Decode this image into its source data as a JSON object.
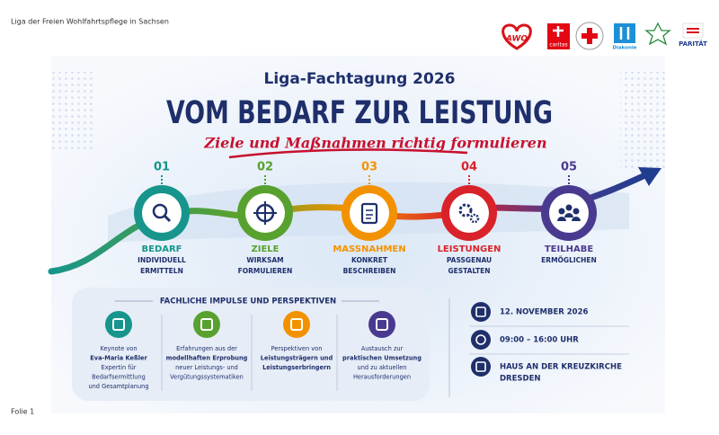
{
  "header": {
    "organization": "Liga der Freien Wohlfahrtspflege in Sachsen",
    "logos": [
      "AWO",
      "caritas",
      "Diakonie",
      "PARITÄT"
    ]
  },
  "slide": {
    "kicker": "Liga-Fachtagung 2026",
    "title": "VOM BEDARF ZUR LEISTUNG",
    "subtitle": "Ziele und Maßnahmen richtig formulieren",
    "steps": [
      {
        "number": "01",
        "title": "BEDARF",
        "lines": [
          "INDIVIDUELL",
          "ERMITTELN"
        ],
        "color": "#17958c"
      },
      {
        "number": "02",
        "title": "ZIELE",
        "lines": [
          "WIRKSAM",
          "FORMULIEREN"
        ],
        "color": "#58a12f"
      },
      {
        "number": "03",
        "title": "MASSNAHMEN",
        "lines": [
          "KONKRET",
          "BESCHREIBEN"
        ],
        "color": "#f39200"
      },
      {
        "number": "04",
        "title": "LEISTUNGEN",
        "lines": [
          "PASSGENAU",
          "GESTALTEN"
        ],
        "color": "#d9222a"
      },
      {
        "number": "05",
        "title": "TEILHABE",
        "lines": [
          "ERMÖGLICHEN"
        ],
        "color": "#4a3a8f"
      }
    ],
    "impulses": {
      "heading": "FACHLICHE IMPULSE UND PERSPEKTIVEN",
      "items": [
        {
          "color": "#17958c",
          "lines": [
            {
              "text": "Keynote von",
              "bold": false
            },
            {
              "text": "Eva-Maria Keßler",
              "bold": true
            },
            {
              "text": "Expertin für",
              "bold": false
            },
            {
              "text": "Bedarfsermittlung",
              "bold": false
            },
            {
              "text": "und Gesamtplanung",
              "bold": false
            }
          ]
        },
        {
          "color": "#58a12f",
          "lines": [
            {
              "text": "Erfahrungen aus der",
              "bold": false
            },
            {
              "text": "modellhaften Erprobung",
              "bold": true
            },
            {
              "text": "neuer Leistungs- und",
              "bold": false
            },
            {
              "text": "Vergütungssystematiken",
              "bold": false
            }
          ]
        },
        {
          "color": "#f39200",
          "lines": [
            {
              "text": "Perspektiven von",
              "bold": false
            },
            {
              "text": "Leistungsträgern und",
              "bold": true
            },
            {
              "text": "Leistungserbringern",
              "bold": true
            }
          ]
        },
        {
          "color": "#4a3a8f",
          "lines": [
            {
              "text": "Austausch zur",
              "bold": false
            },
            {
              "text": "praktischen Umsetzung",
              "bold": true
            },
            {
              "text": "und zu aktuellen",
              "bold": false
            },
            {
              "text": "Herausforderungen",
              "bold": false
            }
          ]
        }
      ]
    },
    "info": {
      "date": "12. NOVEMBER 2026",
      "time": "09:00 – 16:00 UHR",
      "venue": [
        "HAUS AN DER KREUZKIRCHE",
        "DRESDEN"
      ]
    }
  },
  "footer": {
    "slide_label": "Folie 1"
  }
}
